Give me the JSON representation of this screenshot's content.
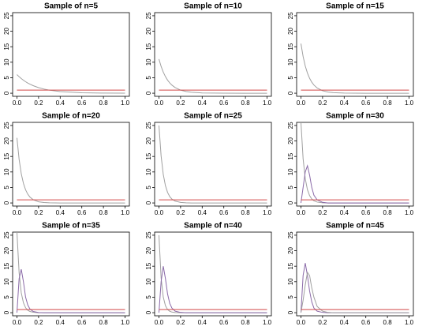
{
  "chart_data": [
    {
      "type": "line",
      "title": "Sample of n=5",
      "x": [
        0,
        0.02,
        0.04,
        0.06,
        0.08,
        0.1,
        0.12,
        0.15,
        0.2,
        0.25,
        0.3,
        0.4,
        0.6,
        0.8,
        1
      ],
      "series": [
        {
          "color": "#a0a0a0",
          "values": [
            6,
            5.32,
            4.72,
            4.19,
            3.71,
            3.29,
            2.92,
            2.44,
            1.81,
            1.34,
            0.99,
            0.54,
            0.16,
            0.05,
            0.01
          ]
        },
        {
          "color": "#d04848",
          "values": [
            1,
            1,
            1,
            1,
            1,
            1,
            1,
            1,
            1,
            1,
            1,
            1,
            1,
            1,
            1
          ]
        }
      ],
      "xlim": [
        -0.04,
        1.04
      ],
      "ylim": [
        -1,
        26
      ],
      "xticks": [
        {
          "value": 0,
          "label": "0.0"
        },
        0.2,
        0.4,
        0.6,
        0.8,
        {
          "value": 1,
          "label": "1.0"
        }
      ],
      "yticks": [
        0,
        5,
        10,
        15,
        20,
        25
      ]
    },
    {
      "type": "line",
      "title": "Sample of n=10",
      "x": [
        0,
        0.02,
        0.04,
        0.06,
        0.08,
        0.1,
        0.12,
        0.15,
        0.2,
        0.25,
        0.3,
        0.4,
        0.6,
        0.8,
        1
      ],
      "series": [
        {
          "color": "#a0a0a0",
          "values": [
            11,
            8.65,
            6.81,
            5.36,
            4.21,
            3.31,
            2.61,
            1.82,
            1.0,
            0.55,
            0.3,
            0.09,
            0.01,
            0,
            0
          ]
        },
        {
          "color": "#d04848",
          "values": [
            1,
            1,
            1,
            1,
            1,
            1,
            1,
            1,
            1,
            1,
            1,
            1,
            1,
            1,
            1
          ]
        }
      ],
      "xlim": [
        -0.04,
        1.04
      ],
      "ylim": [
        -1,
        26
      ],
      "xticks": [
        {
          "value": 0,
          "label": "0.0"
        },
        0.2,
        0.4,
        0.6,
        0.8,
        {
          "value": 1,
          "label": "1.0"
        }
      ],
      "yticks": [
        0,
        5,
        10,
        15,
        20,
        25
      ]
    },
    {
      "type": "line",
      "title": "Sample of n=15",
      "x": [
        0,
        0.02,
        0.04,
        0.06,
        0.08,
        0.1,
        0.12,
        0.15,
        0.2,
        0.25,
        0.3,
        0.4,
        0.6,
        0.8,
        1
      ],
      "series": [
        {
          "color": "#a0a0a0",
          "values": [
            16,
            11.85,
            8.78,
            6.51,
            4.82,
            3.57,
            2.64,
            1.69,
            0.8,
            0.38,
            0.18,
            0.04,
            0,
            0,
            0
          ]
        },
        {
          "color": "#d04848",
          "values": [
            1,
            1,
            1,
            1,
            1,
            1,
            1,
            1,
            1,
            1,
            1,
            1,
            1,
            1,
            1
          ]
        }
      ],
      "xlim": [
        -0.04,
        1.04
      ],
      "ylim": [
        -1,
        26
      ],
      "xticks": [
        {
          "value": 0,
          "label": "0.0"
        },
        0.2,
        0.4,
        0.6,
        0.8,
        {
          "value": 1,
          "label": "1.0"
        }
      ],
      "yticks": [
        0,
        5,
        10,
        15,
        20,
        25
      ]
    },
    {
      "type": "line",
      "title": "Sample of n=20",
      "x": [
        0,
        0.02,
        0.04,
        0.06,
        0.08,
        0.1,
        0.12,
        0.15,
        0.2,
        0.25,
        0.3,
        0.4,
        0.6,
        0.8,
        1
      ],
      "series": [
        {
          "color": "#a0a0a0",
          "values": [
            21,
            14.08,
            9.43,
            6.32,
            4.24,
            2.84,
            1.9,
            1.05,
            0.38,
            0.14,
            0.05,
            0,
            0,
            0,
            0
          ]
        },
        {
          "color": "#d04848",
          "values": [
            1,
            1,
            1,
            1,
            1,
            1,
            1,
            1,
            1,
            1,
            1,
            1,
            1,
            1,
            1
          ]
        }
      ],
      "xlim": [
        -0.04,
        1.04
      ],
      "ylim": [
        -1,
        26
      ],
      "xticks": [
        {
          "value": 0,
          "label": "0.0"
        },
        0.2,
        0.4,
        0.6,
        0.8,
        {
          "value": 1,
          "label": "1.0"
        }
      ],
      "yticks": [
        0,
        5,
        10,
        15,
        20,
        25
      ]
    },
    {
      "type": "line",
      "title": "Sample of n=25",
      "x": [
        0,
        0.02,
        0.04,
        0.06,
        0.08,
        0.1,
        0.12,
        0.15,
        0.2,
        0.25,
        0.3,
        0.4,
        0.6,
        0.8,
        1
      ],
      "series": [
        {
          "color": "#a0a0a0",
          "values": [
            25,
            15.16,
            9.2,
            5.58,
            3.38,
            2.05,
            1.24,
            0.59,
            0.17,
            0.05,
            0,
            0,
            0,
            0,
            0
          ]
        },
        {
          "color": "#d04848",
          "values": [
            1,
            1,
            1,
            1,
            1,
            1,
            1,
            1,
            1,
            1,
            1,
            1,
            1,
            1,
            1
          ]
        }
      ],
      "xlim": [
        -0.04,
        1.04
      ],
      "ylim": [
        -1,
        26
      ],
      "xticks": [
        {
          "value": 0,
          "label": "0.0"
        },
        0.2,
        0.4,
        0.6,
        0.8,
        {
          "value": 1,
          "label": "1.0"
        }
      ],
      "yticks": [
        0,
        5,
        10,
        15,
        20,
        25
      ]
    },
    {
      "type": "line",
      "title": "Sample of n=30",
      "x": [
        0,
        0.02,
        0.04,
        0.06,
        0.08,
        0.1,
        0.12,
        0.15,
        0.2,
        0.25,
        0.3,
        0.4,
        0.6,
        0.8,
        1
      ],
      "series": [
        {
          "color": "#a0a0a0",
          "values": [
            26,
            14.27,
            7.83,
            4.29,
            2.36,
            1.29,
            0.71,
            0.29,
            0.06,
            0,
            0,
            0,
            0,
            0,
            0
          ]
        },
        {
          "color": "#8a6aa8",
          "values": [
            0,
            5,
            10,
            12,
            9,
            5,
            2.5,
            1,
            0.2,
            0,
            0,
            0,
            0,
            0,
            0
          ]
        },
        {
          "color": "#d04848",
          "values": [
            1,
            1,
            1,
            1,
            1,
            1,
            1,
            1,
            1,
            1,
            1,
            1,
            1,
            1,
            1
          ]
        }
      ],
      "xlim": [
        -0.04,
        1.04
      ],
      "ylim": [
        -1,
        26
      ],
      "xticks": [
        {
          "value": 0,
          "label": "0.0"
        },
        0.2,
        0.4,
        0.6,
        0.8,
        {
          "value": 1,
          "label": "1.0"
        }
      ],
      "yticks": [
        0,
        5,
        10,
        15,
        20,
        25
      ]
    },
    {
      "type": "line",
      "title": "Sample of n=35",
      "x": [
        0,
        0.02,
        0.04,
        0.06,
        0.08,
        0.1,
        0.12,
        0.15,
        0.2,
        0.25,
        0.3,
        0.4,
        0.6,
        0.8,
        1
      ],
      "series": [
        {
          "color": "#a0a0a0",
          "values": [
            26,
            12.9,
            6.4,
            3.2,
            1.6,
            0.8,
            0.39,
            0.14,
            0,
            0,
            0,
            0,
            0,
            0,
            0
          ]
        },
        {
          "color": "#8a6aa8",
          "values": [
            0,
            11,
            14,
            10,
            5,
            2.5,
            1.2,
            0.4,
            0.05,
            0,
            0,
            0,
            0,
            0,
            0
          ]
        },
        {
          "color": "#d04848",
          "values": [
            1,
            1,
            1,
            1,
            1,
            1,
            1,
            1,
            1,
            1,
            1,
            1,
            1,
            1,
            1
          ]
        }
      ],
      "xlim": [
        -0.04,
        1.04
      ],
      "ylim": [
        -1,
        26
      ],
      "xticks": [
        {
          "value": 0,
          "label": "0.0"
        },
        0.2,
        0.4,
        0.6,
        0.8,
        {
          "value": 1,
          "label": "1.0"
        }
      ],
      "yticks": [
        0,
        5,
        10,
        15,
        20,
        25
      ]
    },
    {
      "type": "line",
      "title": "Sample of n=40",
      "x": [
        0,
        0.02,
        0.04,
        0.06,
        0.08,
        0.1,
        0.12,
        0.15,
        0.2,
        0.25,
        0.3,
        0.4,
        0.6,
        0.8,
        1
      ],
      "series": [
        {
          "color": "#a0a0a0",
          "values": [
            25,
            11.2,
            5.05,
            2.27,
            1.02,
            0.46,
            0.2,
            0.06,
            0,
            0,
            0,
            0,
            0,
            0,
            0
          ]
        },
        {
          "color": "#8a6aa8",
          "values": [
            0,
            10,
            15,
            11,
            6,
            3,
            1.5,
            0.5,
            0.1,
            0,
            0,
            0,
            0,
            0,
            0
          ]
        },
        {
          "color": "#d04848",
          "values": [
            1,
            1,
            1,
            1,
            1,
            1,
            1,
            1,
            1,
            1,
            1,
            1,
            1,
            1,
            1
          ]
        }
      ],
      "xlim": [
        -0.04,
        1.04
      ],
      "ylim": [
        -1,
        26
      ],
      "xticks": [
        {
          "value": 0,
          "label": "0.0"
        },
        0.2,
        0.4,
        0.6,
        0.8,
        {
          "value": 1,
          "label": "1.0"
        }
      ],
      "yticks": [
        0,
        5,
        10,
        15,
        20,
        25
      ]
    },
    {
      "type": "line",
      "title": "Sample of n=45",
      "x": [
        0,
        0.02,
        0.04,
        0.06,
        0.08,
        0.1,
        0.12,
        0.15,
        0.2,
        0.25,
        0.3,
        0.4,
        0.6,
        0.8,
        1
      ],
      "series": [
        {
          "color": "#8a6aa8",
          "values": [
            0,
            12,
            16,
            12,
            7,
            3.5,
            1.5,
            0.5,
            0.1,
            0,
            0,
            0,
            0,
            0,
            0
          ]
        },
        {
          "color": "#a0a0a0",
          "values": [
            0,
            4,
            9,
            13,
            12,
            8,
            5,
            2,
            0.5,
            0.1,
            0,
            0,
            0,
            0,
            0
          ]
        },
        {
          "color": "#d04848",
          "values": [
            1,
            1,
            1,
            1,
            1,
            1,
            1,
            1,
            1,
            1,
            1,
            1,
            1,
            1,
            1
          ]
        }
      ],
      "xlim": [
        -0.04,
        1.04
      ],
      "ylim": [
        -1,
        26
      ],
      "xticks": [
        {
          "value": 0,
          "label": "0.0"
        },
        0.2,
        0.4,
        0.6,
        0.8,
        {
          "value": 1,
          "label": "1.0"
        }
      ],
      "yticks": [
        0,
        5,
        10,
        15,
        20,
        25
      ]
    }
  ]
}
